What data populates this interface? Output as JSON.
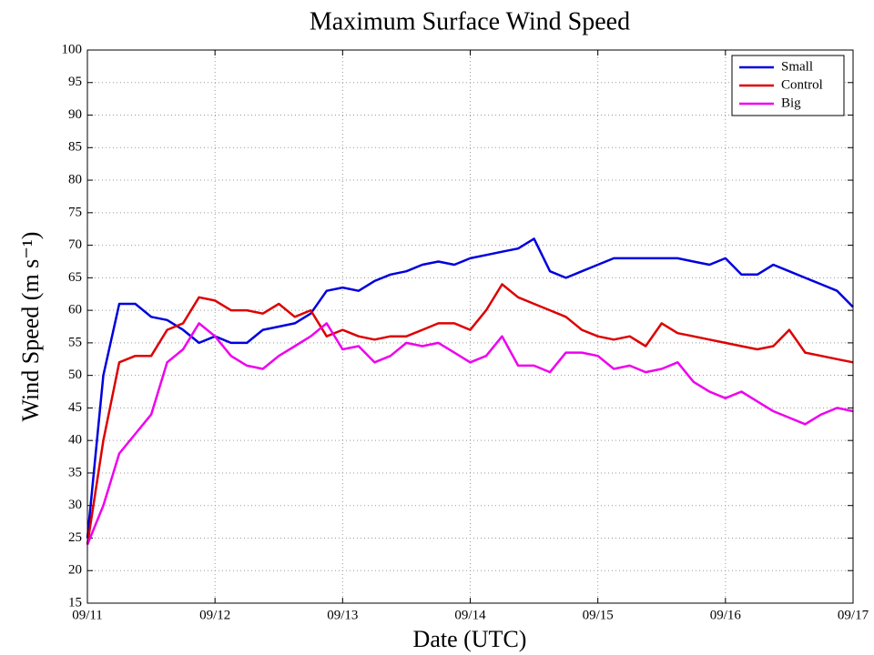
{
  "chart_data": {
    "type": "line",
    "title": "Maximum Surface Wind Speed",
    "xlabel": "Date (UTC)",
    "ylabel": "Wind Speed (m s⁻¹)",
    "x": [
      0,
      0.125,
      0.25,
      0.375,
      0.5,
      0.625,
      0.75,
      0.875,
      1,
      1.125,
      1.25,
      1.375,
      1.5,
      1.625,
      1.75,
      1.875,
      2,
      2.125,
      2.25,
      2.375,
      2.5,
      2.625,
      2.75,
      2.875,
      3,
      3.125,
      3.25,
      3.375,
      3.5,
      3.625,
      3.75,
      3.875,
      4,
      4.125,
      4.25,
      4.375,
      4.5,
      4.625,
      4.75,
      4.875,
      5,
      5.125,
      5.25,
      5.375,
      5.5,
      5.625,
      5.75,
      5.875,
      6
    ],
    "series": [
      {
        "name": "Small",
        "color": "#0000dd",
        "values": [
          25,
          50,
          61,
          61,
          59,
          58.5,
          57,
          55,
          56,
          55,
          55,
          57,
          57.5,
          58,
          59.5,
          63,
          63.5,
          63,
          64.5,
          65.5,
          66,
          67,
          67.5,
          67,
          68,
          68.5,
          69,
          69.5,
          71,
          66,
          65,
          66,
          67,
          68,
          68,
          68,
          68,
          68,
          67.5,
          67,
          68,
          65.5,
          65.5,
          67,
          66,
          65,
          64,
          63,
          60.5
        ]
      },
      {
        "name": "Control",
        "color": "#dd0000",
        "values": [
          24,
          40,
          52,
          53,
          53,
          57,
          58,
          62,
          61.5,
          60,
          60,
          59.5,
          61,
          59,
          60,
          56,
          57,
          56,
          55.5,
          56,
          56,
          57,
          58,
          58,
          57,
          60,
          64,
          62,
          61,
          60,
          59,
          57,
          56,
          55.5,
          56,
          54.5,
          58,
          56.5,
          56,
          55.5,
          55,
          54.5,
          54,
          54.5,
          57,
          53.5,
          53,
          52.5,
          52
        ]
      },
      {
        "name": "Big",
        "color": "#ee00ee",
        "values": [
          24,
          30,
          38,
          41,
          44,
          52,
          54,
          58,
          56,
          53,
          51.5,
          51,
          53,
          54.5,
          56,
          58,
          54,
          54.5,
          52,
          53,
          55,
          54.5,
          55,
          53.5,
          52,
          53,
          56,
          51.5,
          51.5,
          50.5,
          53.5,
          53.5,
          53,
          51,
          51.5,
          50.5,
          51,
          52,
          49,
          47.5,
          46.5,
          47.5,
          46,
          44.5,
          43.5,
          42.5,
          44,
          45,
          44.5
        ]
      }
    ],
    "xlim": [
      0,
      6
    ],
    "xticks": [
      {
        "value": 0,
        "label": "09/11"
      },
      {
        "value": 1,
        "label": "09/12"
      },
      {
        "value": 2,
        "label": "09/13"
      },
      {
        "value": 3,
        "label": "09/14"
      },
      {
        "value": 4,
        "label": "09/15"
      },
      {
        "value": 5,
        "label": "09/16"
      },
      {
        "value": 6,
        "label": "09/17"
      }
    ],
    "ylim": [
      15,
      100
    ],
    "yticks": [
      15,
      20,
      25,
      30,
      35,
      40,
      45,
      50,
      55,
      60,
      65,
      70,
      75,
      80,
      85,
      90,
      95,
      100
    ],
    "grid": true,
    "legend": "upper right"
  }
}
